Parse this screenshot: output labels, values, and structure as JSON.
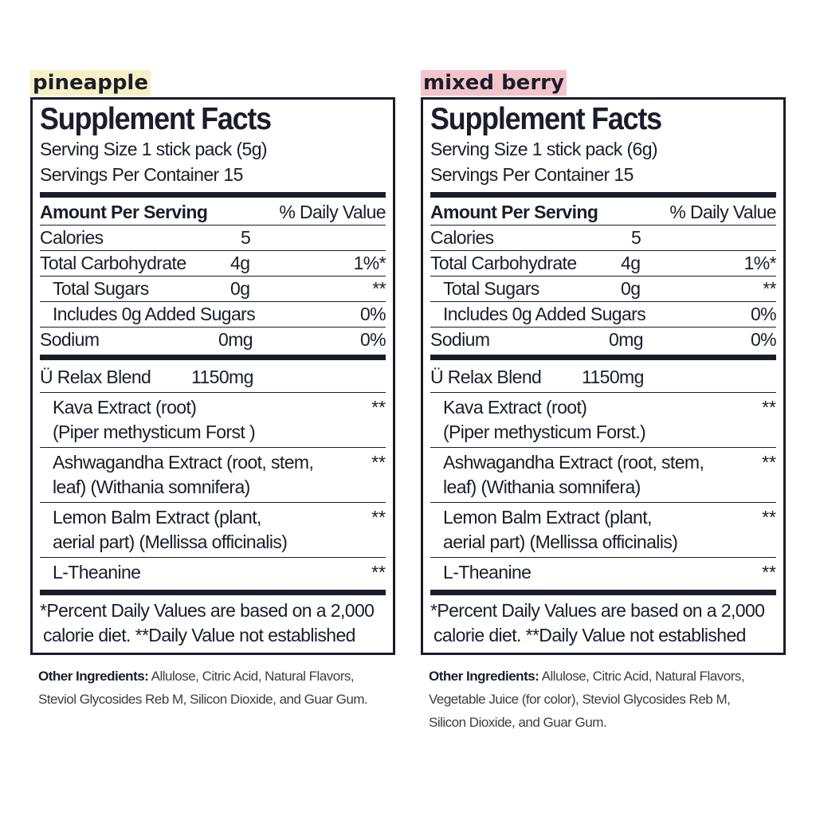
{
  "left": {
    "flavor": "pineapple",
    "title": "Supplement Facts",
    "serving_size": "Serving Size 1 stick pack (5g)",
    "servings_per_container": "Servings Per Container 15",
    "amount_header": "Amount Per Serving",
    "dv_header": "% Daily Value",
    "rows": [
      {
        "name": "Calories",
        "amount": "5",
        "dv": ""
      },
      {
        "name": "Total Carbohydrate",
        "amount": "4g",
        "dv": "1%*"
      },
      {
        "name": "Total Sugars",
        "amount": "0g",
        "dv": "**"
      },
      {
        "name": "Includes 0g Added Sugars",
        "amount": "",
        "dv": "0%"
      },
      {
        "name": "Sodium",
        "amount": "0mg",
        "dv": "0%"
      }
    ],
    "blend_name": "Ü Relax Blend",
    "blend_amount": "1150mg",
    "ingredients": [
      {
        "line1": "Kava Extract (root)",
        "line2": "(Piper methysticum Forst )",
        "dv": "**"
      },
      {
        "line1": "Ashwagandha Extract (root, stem,",
        "line2": "leaf) (Withania somnifera)",
        "dv": "**"
      },
      {
        "line1": "Lemon Balm Extract (plant,",
        "line2": "aerial part) (Mellissa officinalis)",
        "dv": "**"
      },
      {
        "line1": "L-Theanine",
        "line2": "",
        "dv": "**"
      }
    ],
    "footnote1": "*Percent Daily Values are based on a 2,000",
    "footnote2": "calorie diet. **Daily Value not established",
    "other_label": "Other Ingredients:",
    "other_line1": " Allulose, Citric Acid, Natural Flavors,",
    "other_line2": "Steviol Glycosides Reb M, Silicon Dioxide, and Guar Gum.",
    "other_line3": ""
  },
  "right": {
    "flavor": "mixed berry",
    "title": "Supplement Facts",
    "serving_size": "Serving Size 1 stick pack (6g)",
    "servings_per_container": "Servings Per Container 15",
    "amount_header": "Amount Per Serving",
    "dv_header": "% Daily Value",
    "rows": [
      {
        "name": "Calories",
        "amount": "5",
        "dv": ""
      },
      {
        "name": "Total Carbohydrate",
        "amount": "4g",
        "dv": "1%*"
      },
      {
        "name": "Total Sugars",
        "amount": "0g",
        "dv": "**"
      },
      {
        "name": "Includes 0g Added Sugars",
        "amount": "",
        "dv": "0%"
      },
      {
        "name": "Sodium",
        "amount": "0mg",
        "dv": "0%"
      }
    ],
    "blend_name": "Ü Relax Blend",
    "blend_amount": "1150mg",
    "ingredients": [
      {
        "line1": "Kava Extract (root)",
        "line2": "(Piper methysticum Forst.)",
        "dv": "**"
      },
      {
        "line1": "Ashwagandha Extract (root, stem,",
        "line2": "leaf) (Withania somnifera)",
        "dv": "**"
      },
      {
        "line1": "Lemon Balm Extract (plant,",
        "line2": "aerial part) (Mellissa officinalis)",
        "dv": "**"
      },
      {
        "line1": "L-Theanine",
        "line2": "",
        "dv": "**"
      }
    ],
    "footnote1": "*Percent Daily Values are based on a 2,000",
    "footnote2": "calorie diet. **Daily Value not established",
    "other_label": "Other Ingredients:",
    "other_line1": " Allulose, Citric Acid, Natural Flavors,",
    "other_line2": "Vegetable Juice (for color), Steviol Glycosides Reb M,",
    "other_line3": "Silicon Dioxide, and Guar Gum."
  },
  "colors": {
    "ink": "#1a1d2b",
    "pineapple_highlight": "#f6f1c4",
    "berry_highlight": "#f3c4c9"
  }
}
